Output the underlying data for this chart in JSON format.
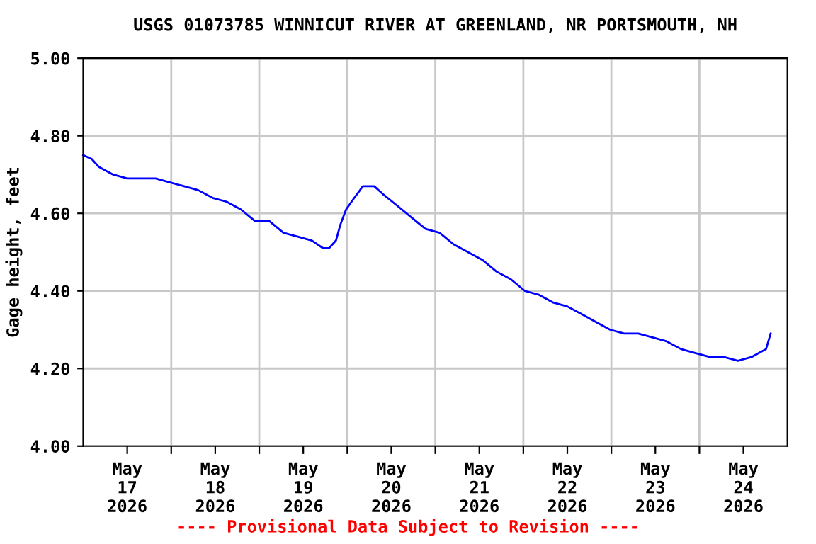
{
  "chart_data": {
    "type": "line",
    "title": "USGS 01073785 WINNICUT RIVER AT GREENLAND, NR PORTSMOUTH, NH",
    "ylabel": "Gage height, feet",
    "annotations": [
      "---- Provisional Data Subject to Revision ----"
    ],
    "x": [
      "2026-05-17T00:00",
      "2026-05-17T02:20",
      "2026-05-17T04:15",
      "2026-05-17T06:10",
      "2026-05-17T08:10",
      "2026-05-17T12:00",
      "2026-05-17T19:45",
      "2026-05-17T23:35",
      "2026-05-18T03:30",
      "2026-05-18T07:20",
      "2026-05-18T11:15",
      "2026-05-18T15:05",
      "2026-05-18T19:00",
      "2026-05-18T22:50",
      "2026-05-19T02:45",
      "2026-05-19T06:35",
      "2026-05-19T10:30",
      "2026-05-19T14:20",
      "2026-05-19T17:25",
      "2026-05-19T19:00",
      "2026-05-19T20:55",
      "2026-05-19T22:05",
      "2026-05-19T23:40",
      "2026-05-20T01:55",
      "2026-05-20T04:15",
      "2026-05-20T07:20",
      "2026-05-20T09:40",
      "2026-05-20T13:35",
      "2026-05-20T17:25",
      "2026-05-20T21:20",
      "2026-05-21T01:10",
      "2026-05-21T05:00",
      "2026-05-21T08:55",
      "2026-05-21T12:50",
      "2026-05-21T16:40",
      "2026-05-21T20:35",
      "2026-05-22T00:25",
      "2026-05-22T04:15",
      "2026-05-22T08:10",
      "2026-05-22T12:00",
      "2026-05-22T15:55",
      "2026-05-22T19:45",
      "2026-05-22T23:40",
      "2026-05-23T03:30",
      "2026-05-23T07:20",
      "2026-05-23T11:15",
      "2026-05-23T15:05",
      "2026-05-23T19:00",
      "2026-05-23T22:50",
      "2026-05-24T02:45",
      "2026-05-24T06:35",
      "2026-05-24T10:30",
      "2026-05-24T14:20",
      "2026-05-24T16:15",
      "2026-05-24T18:10",
      "2026-05-24T19:25"
    ],
    "series": [
      {
        "color": "#0000ff",
        "values": [
          4.75,
          4.74,
          4.72,
          4.71,
          4.7,
          4.69,
          4.69,
          4.68,
          4.67,
          4.66,
          4.64,
          4.63,
          4.61,
          4.58,
          4.58,
          4.55,
          4.54,
          4.53,
          4.51,
          4.51,
          4.53,
          4.57,
          4.61,
          4.64,
          4.67,
          4.67,
          4.65,
          4.62,
          4.59,
          4.56,
          4.55,
          4.52,
          4.5,
          4.48,
          4.45,
          4.43,
          4.4,
          4.39,
          4.37,
          4.36,
          4.34,
          4.32,
          4.3,
          4.29,
          4.29,
          4.28,
          4.27,
          4.25,
          4.24,
          4.23,
          4.23,
          4.22,
          4.23,
          4.24,
          4.25,
          4.29
        ]
      }
    ],
    "xlim": [
      "2026-05-17T00:00",
      "2026-05-25T00:00"
    ],
    "xticks": [
      {
        "value": "2026-05-17T12:00",
        "label": "May\n17\n2026"
      },
      {
        "value": "2026-05-18T00:00",
        "label": null
      },
      {
        "value": "2026-05-18T12:00",
        "label": "May\n18\n2026"
      },
      {
        "value": "2026-05-19T00:00",
        "label": null
      },
      {
        "value": "2026-05-19T12:00",
        "label": "May\n19\n2026"
      },
      {
        "value": "2026-05-20T00:00",
        "label": null
      },
      {
        "value": "2026-05-20T12:00",
        "label": "May\n20\n2026"
      },
      {
        "value": "2026-05-21T00:00",
        "label": null
      },
      {
        "value": "2026-05-21T12:00",
        "label": "May\n21\n2026"
      },
      {
        "value": "2026-05-22T00:00",
        "label": null
      },
      {
        "value": "2026-05-22T12:00",
        "label": "May\n22\n2026"
      },
      {
        "value": "2026-05-23T00:00",
        "label": null
      },
      {
        "value": "2026-05-23T12:00",
        "label": "May\n23\n2026"
      },
      {
        "value": "2026-05-24T00:00",
        "label": null
      },
      {
        "value": "2026-05-24T12:00",
        "label": "May\n24\n2026"
      }
    ],
    "ylim": [
      4.0,
      5.0
    ],
    "yticks": [
      {
        "value": 4.0,
        "label": "4.00"
      },
      {
        "value": 4.2,
        "label": "4.20"
      },
      {
        "value": 4.4,
        "label": "4.40"
      },
      {
        "value": 4.6,
        "label": "4.60"
      },
      {
        "value": 4.8,
        "label": "4.80"
      },
      {
        "value": 5.0,
        "label": "5.00"
      }
    ],
    "grid": true,
    "legend": false,
    "marker": "none",
    "line_style": "solid"
  }
}
